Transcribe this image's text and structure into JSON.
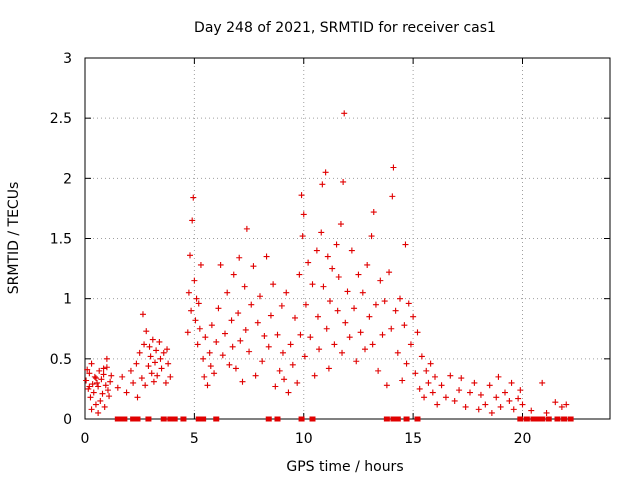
{
  "chart_data": {
    "type": "scatter",
    "title": "Day 248 of 2021, SRMTID for receiver cas1",
    "xlabel": "GPS time / hours",
    "ylabel": "SRMTID / TECUs",
    "xlim": [
      0,
      24
    ],
    "ylim": [
      0,
      3
    ],
    "xticks": [
      0,
      5,
      10,
      15,
      20
    ],
    "xtick_labels": [
      "0",
      "5",
      "10",
      "15",
      "20"
    ],
    "yticks": [
      0,
      0.5,
      1,
      1.5,
      2,
      2.5,
      3
    ],
    "ytick_labels": [
      "0",
      "0.5",
      "1",
      "1.5",
      "2",
      "2.5",
      "3"
    ],
    "grid": true,
    "marker": "+",
    "colors": {
      "series": "#e00000",
      "grid": "#a0a0a0",
      "axis": "#000000"
    },
    "series": [
      {
        "name": "SRMTID",
        "points": [
          [
            0.05,
            0.32
          ],
          [
            0.1,
            0.41
          ],
          [
            0.15,
            0.25
          ],
          [
            0.2,
            0.38
          ],
          [
            0.25,
            0.18
          ],
          [
            0.3,
            0.46
          ],
          [
            0.35,
            0.29
          ],
          [
            0.4,
            0.22
          ],
          [
            0.45,
            0.35
          ],
          [
            0.5,
            0.12
          ],
          [
            0.55,
            0.3
          ],
          [
            0.6,
            0.27
          ],
          [
            0.65,
            0.4
          ],
          [
            0.7,
            0.15
          ],
          [
            0.75,
            0.33
          ],
          [
            0.8,
            0.21
          ],
          [
            0.85,
            0.37
          ],
          [
            0.9,
            0.1
          ],
          [
            0.95,
            0.28
          ],
          [
            1.0,
            0.43
          ],
          [
            1.05,
            0.24
          ],
          [
            1.1,
            0.19
          ],
          [
            1.15,
            0.31
          ],
          [
            1.0,
            0.5
          ],
          [
            0.3,
            0.08
          ],
          [
            0.6,
            0.05
          ],
          [
            0.85,
            0.42
          ],
          [
            0.2,
            0.27
          ],
          [
            1.2,
            0.36
          ],
          [
            0.5,
            0.34
          ],
          [
            1.5,
            0.26
          ],
          [
            1.7,
            0.35
          ],
          [
            1.9,
            0.22
          ],
          [
            2.1,
            0.4
          ],
          [
            2.2,
            0.3
          ],
          [
            2.35,
            0.46
          ],
          [
            2.4,
            0.18
          ],
          [
            2.5,
            0.55
          ],
          [
            2.6,
            0.34
          ],
          [
            2.7,
            0.62
          ],
          [
            2.75,
            0.28
          ],
          [
            2.8,
            0.73
          ],
          [
            2.9,
            0.44
          ],
          [
            3.0,
            0.52
          ],
          [
            3.05,
            0.38
          ],
          [
            3.1,
            0.66
          ],
          [
            3.2,
            0.47
          ],
          [
            3.25,
            0.57
          ],
          [
            3.3,
            0.36
          ],
          [
            3.4,
            0.64
          ],
          [
            3.5,
            0.42
          ],
          [
            3.6,
            0.55
          ],
          [
            3.7,
            0.3
          ],
          [
            3.8,
            0.46
          ],
          [
            3.9,
            0.35
          ],
          [
            2.65,
            0.87
          ],
          [
            3.15,
            0.31
          ],
          [
            3.45,
            0.5
          ],
          [
            2.95,
            0.6
          ],
          [
            3.75,
            0.58
          ],
          [
            4.7,
            0.72
          ],
          [
            4.75,
            1.05
          ],
          [
            4.8,
            1.36
          ],
          [
            4.85,
            0.9
          ],
          [
            4.9,
            1.65
          ],
          [
            4.95,
            1.84
          ],
          [
            5.0,
            1.15
          ],
          [
            5.05,
            0.82
          ],
          [
            5.1,
            1.0
          ],
          [
            5.15,
            0.62
          ],
          [
            5.2,
            0.96
          ],
          [
            5.25,
            0.75
          ],
          [
            5.3,
            1.28
          ],
          [
            5.4,
            0.5
          ],
          [
            5.45,
            0.35
          ],
          [
            5.5,
            0.68
          ],
          [
            5.6,
            0.28
          ],
          [
            5.7,
            0.55
          ],
          [
            5.75,
            0.44
          ],
          [
            5.8,
            0.78
          ],
          [
            5.9,
            0.38
          ],
          [
            6.0,
            0.64
          ],
          [
            6.1,
            0.92
          ],
          [
            6.2,
            1.28
          ],
          [
            6.3,
            0.53
          ],
          [
            6.4,
            0.71
          ],
          [
            6.5,
            1.05
          ],
          [
            6.6,
            0.45
          ],
          [
            6.7,
            0.82
          ],
          [
            6.75,
            0.6
          ],
          [
            6.8,
            1.2
          ],
          [
            6.9,
            0.42
          ],
          [
            7.0,
            0.88
          ],
          [
            7.05,
            1.34
          ],
          [
            7.1,
            0.65
          ],
          [
            7.2,
            0.31
          ],
          [
            7.3,
            1.1
          ],
          [
            7.35,
            0.74
          ],
          [
            7.4,
            1.58
          ],
          [
            7.5,
            0.56
          ],
          [
            7.6,
            0.95
          ],
          [
            7.7,
            1.27
          ],
          [
            7.8,
            0.36
          ],
          [
            7.9,
            0.8
          ],
          [
            8.0,
            1.02
          ],
          [
            8.1,
            0.48
          ],
          [
            8.2,
            0.69
          ],
          [
            8.3,
            1.35
          ],
          [
            8.4,
            0.6
          ],
          [
            8.5,
            0.86
          ],
          [
            8.6,
            1.12
          ],
          [
            8.7,
            0.27
          ],
          [
            8.8,
            0.7
          ],
          [
            8.9,
            0.4
          ],
          [
            9.0,
            0.94
          ],
          [
            9.05,
            0.55
          ],
          [
            9.1,
            0.33
          ],
          [
            9.2,
            1.05
          ],
          [
            9.3,
            0.22
          ],
          [
            9.4,
            0.62
          ],
          [
            9.5,
            0.45
          ],
          [
            9.6,
            0.84
          ],
          [
            9.7,
            0.3
          ],
          [
            9.8,
            1.2
          ],
          [
            9.85,
            0.7
          ],
          [
            9.9,
            1.86
          ],
          [
            9.95,
            1.52
          ],
          [
            10.0,
            1.7
          ],
          [
            10.05,
            0.52
          ],
          [
            10.1,
            0.95
          ],
          [
            10.2,
            1.3
          ],
          [
            10.3,
            0.68
          ],
          [
            10.4,
            1.12
          ],
          [
            10.5,
            0.36
          ],
          [
            10.6,
            1.4
          ],
          [
            10.65,
            0.85
          ],
          [
            10.7,
            0.58
          ],
          [
            10.8,
            1.55
          ],
          [
            10.85,
            1.95
          ],
          [
            10.9,
            1.1
          ],
          [
            11.0,
            2.05
          ],
          [
            11.05,
            0.75
          ],
          [
            11.1,
            1.35
          ],
          [
            11.15,
            0.42
          ],
          [
            11.2,
            0.98
          ],
          [
            11.3,
            1.25
          ],
          [
            11.4,
            0.62
          ],
          [
            11.5,
            1.45
          ],
          [
            11.55,
            0.9
          ],
          [
            11.6,
            1.18
          ],
          [
            11.7,
            1.62
          ],
          [
            11.75,
            0.55
          ],
          [
            11.8,
            1.97
          ],
          [
            11.85,
            2.54
          ],
          [
            11.9,
            0.8
          ],
          [
            12.0,
            1.06
          ],
          [
            12.1,
            0.68
          ],
          [
            12.2,
            1.4
          ],
          [
            12.3,
            0.92
          ],
          [
            12.4,
            0.48
          ],
          [
            12.5,
            1.2
          ],
          [
            12.6,
            0.72
          ],
          [
            12.7,
            1.05
          ],
          [
            12.8,
            0.58
          ],
          [
            12.9,
            1.28
          ],
          [
            13.0,
            0.85
          ],
          [
            13.1,
            1.52
          ],
          [
            13.15,
            0.62
          ],
          [
            13.2,
            1.72
          ],
          [
            13.3,
            0.95
          ],
          [
            13.4,
            0.4
          ],
          [
            13.5,
            1.15
          ],
          [
            13.6,
            0.7
          ],
          [
            13.7,
            0.98
          ],
          [
            13.8,
            0.28
          ],
          [
            13.9,
            1.22
          ],
          [
            14.0,
            0.75
          ],
          [
            14.05,
            1.85
          ],
          [
            14.1,
            2.09
          ],
          [
            14.2,
            0.9
          ],
          [
            14.3,
            0.55
          ],
          [
            14.4,
            1.0
          ],
          [
            14.5,
            0.32
          ],
          [
            14.6,
            0.78
          ],
          [
            14.65,
            1.45
          ],
          [
            14.7,
            0.46
          ],
          [
            14.8,
            0.96
          ],
          [
            14.9,
            0.62
          ],
          [
            15.0,
            0.85
          ],
          [
            15.1,
            0.38
          ],
          [
            15.2,
            0.72
          ],
          [
            15.3,
            0.25
          ],
          [
            15.4,
            0.52
          ],
          [
            15.5,
            0.18
          ],
          [
            15.6,
            0.4
          ],
          [
            15.7,
            0.3
          ],
          [
            15.8,
            0.46
          ],
          [
            15.9,
            0.22
          ],
          [
            16.0,
            0.35
          ],
          [
            16.1,
            0.12
          ],
          [
            16.3,
            0.28
          ],
          [
            16.5,
            0.18
          ],
          [
            16.7,
            0.36
          ],
          [
            16.9,
            0.15
          ],
          [
            17.1,
            0.24
          ],
          [
            17.2,
            0.34
          ],
          [
            17.4,
            0.1
          ],
          [
            17.6,
            0.22
          ],
          [
            17.8,
            0.3
          ],
          [
            18.0,
            0.08
          ],
          [
            18.1,
            0.2
          ],
          [
            18.3,
            0.12
          ],
          [
            18.5,
            0.28
          ],
          [
            18.6,
            0.05
          ],
          [
            18.8,
            0.18
          ],
          [
            18.9,
            0.35
          ],
          [
            19.0,
            0.1
          ],
          [
            19.2,
            0.22
          ],
          [
            19.4,
            0.15
          ],
          [
            19.5,
            0.3
          ],
          [
            19.6,
            0.08
          ],
          [
            19.8,
            0.17
          ],
          [
            19.9,
            0.24
          ],
          [
            20.0,
            0.12
          ],
          [
            20.4,
            0.07
          ],
          [
            20.9,
            0.3
          ],
          [
            21.1,
            0.05
          ],
          [
            21.5,
            0.14
          ],
          [
            21.8,
            0.1
          ],
          [
            22.0,
            0.12
          ],
          [
            1.5,
            0
          ],
          [
            1.6,
            0
          ],
          [
            1.8,
            0
          ],
          [
            2.2,
            0
          ],
          [
            2.4,
            0
          ],
          [
            2.9,
            0
          ],
          [
            3.6,
            0
          ],
          [
            3.9,
            0
          ],
          [
            4.1,
            0
          ],
          [
            4.5,
            0
          ],
          [
            5.2,
            0
          ],
          [
            5.4,
            0
          ],
          [
            6.0,
            0
          ],
          [
            8.4,
            0
          ],
          [
            8.8,
            0
          ],
          [
            9.9,
            0
          ],
          [
            10.4,
            0
          ],
          [
            13.8,
            0
          ],
          [
            14.1,
            0
          ],
          [
            14.3,
            0
          ],
          [
            14.7,
            0
          ],
          [
            15.2,
            0
          ],
          [
            19.9,
            0
          ],
          [
            20.2,
            0
          ],
          [
            20.5,
            0
          ],
          [
            20.7,
            0
          ],
          [
            20.9,
            0
          ],
          [
            21.2,
            0
          ],
          [
            21.6,
            0
          ],
          [
            21.9,
            0
          ],
          [
            22.2,
            0
          ]
        ]
      }
    ]
  }
}
